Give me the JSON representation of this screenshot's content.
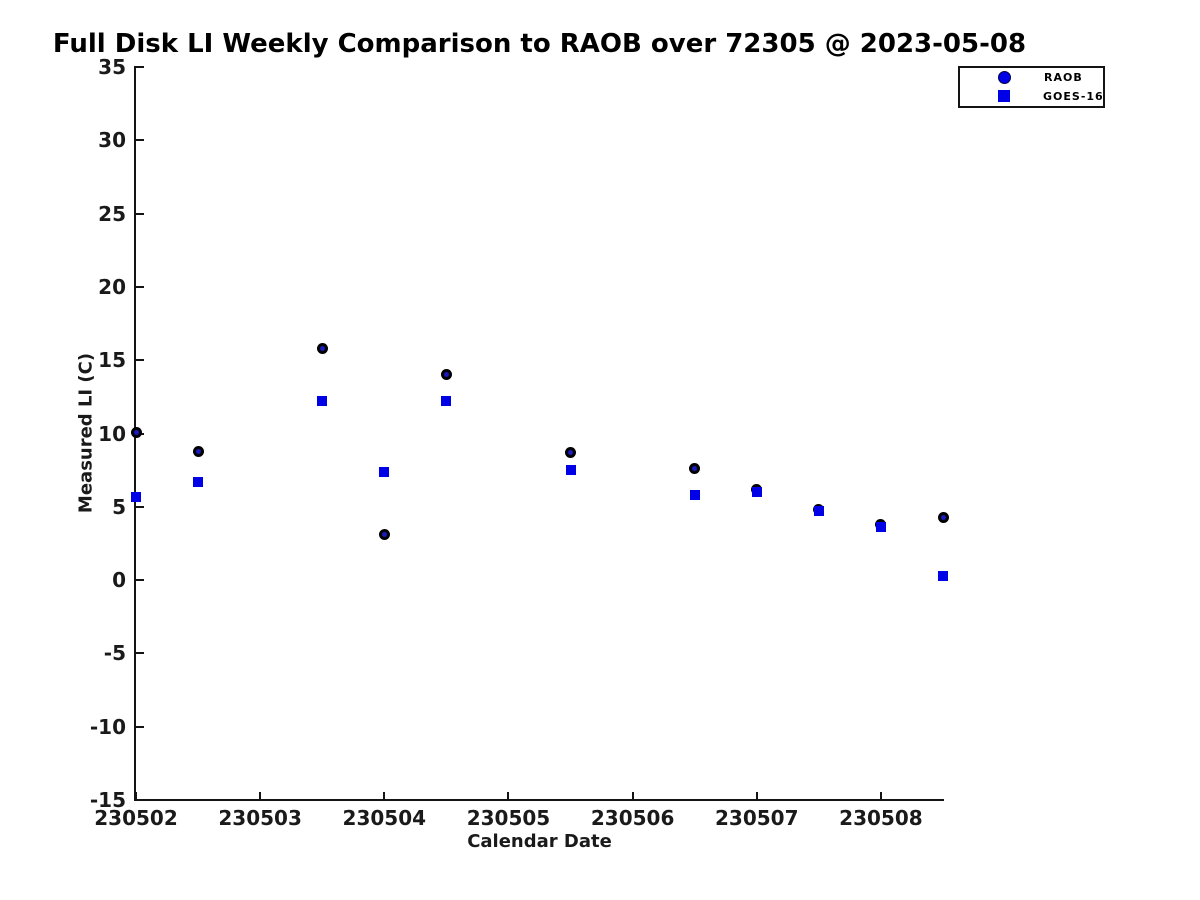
{
  "chart_data": {
    "type": "scatter",
    "title": "Full Disk LI Weekly Comparison to RAOB over 72305 @ 2023-05-08",
    "xlabel": "Calendar Date",
    "ylabel": "Measured LI (C)",
    "xlim": [
      230502,
      230508.5
    ],
    "ylim": [
      -15,
      35
    ],
    "x_ticks": [
      230502,
      230503,
      230504,
      230505,
      230506,
      230507,
      230508
    ],
    "y_ticks": [
      35,
      30,
      25,
      20,
      15,
      10,
      5,
      0,
      -5,
      -10,
      -15
    ],
    "grid": false,
    "legend_position": "top-right",
    "series": [
      {
        "name": "RAOB",
        "marker": "circle",
        "color": "#000000",
        "fill_color": "#1c1cbe",
        "x": [
          230502,
          230502.5,
          230503.5,
          230504,
          230504.5,
          230505.5,
          230506.5,
          230507,
          230507.5,
          230508,
          230508.5
        ],
        "y": [
          10.1,
          8.8,
          15.8,
          3.1,
          14.0,
          8.7,
          7.6,
          6.2,
          4.8,
          3.8,
          4.3
        ]
      },
      {
        "name": "GOES-16",
        "marker": "square",
        "color": "#0000e6",
        "x": [
          230502,
          230502.5,
          230503.5,
          230504,
          230504.5,
          230505.5,
          230506.5,
          230507,
          230507.5,
          230508,
          230508.5
        ],
        "y": [
          5.7,
          6.7,
          12.2,
          7.4,
          12.2,
          7.5,
          5.8,
          6.0,
          4.7,
          3.6,
          0.3
        ]
      }
    ]
  }
}
